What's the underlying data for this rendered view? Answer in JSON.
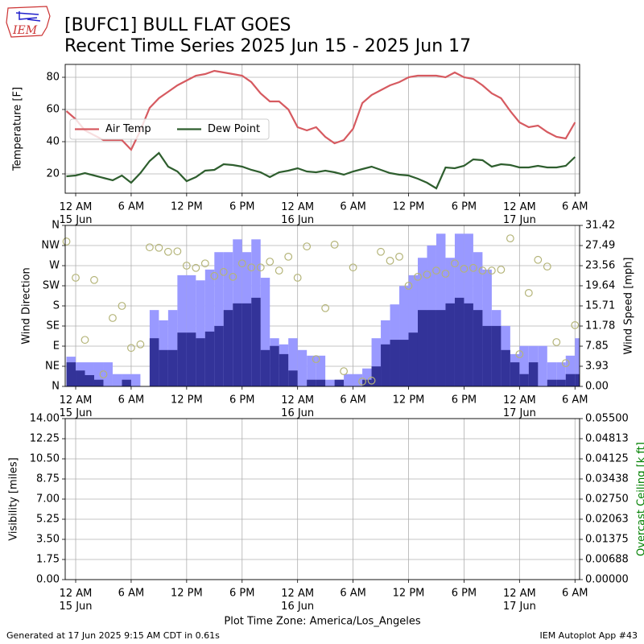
{
  "logo_text": "IEM",
  "title": "[BUFC1] BULL FLAT GOES",
  "subtitle": "Recent Time Series 2025 Jun 15 - 2025 Jun 17",
  "footer": {
    "left": "Generated at 17 Jun 2025 9:15 AM CDT in 0.61s",
    "right": "IEM Autoplot App #43"
  },
  "chart_data": [
    {
      "type": "line",
      "y_label": "Temperature [F]",
      "grid": true,
      "legend": "upper left",
      "x": [
        "Jun 14 23:00",
        "Jun 15 00:00",
        "Jun 15 01:00",
        "Jun 15 02:00",
        "Jun 15 03:00",
        "Jun 15 04:00",
        "Jun 15 05:00",
        "Jun 15 06:00",
        "Jun 15 07:00",
        "Jun 15 08:00",
        "Jun 15 09:00",
        "Jun 15 10:00",
        "Jun 15 11:00",
        "Jun 15 12:00",
        "Jun 15 13:00",
        "Jun 15 14:00",
        "Jun 15 15:00",
        "Jun 15 16:00",
        "Jun 15 17:00",
        "Jun 15 18:00",
        "Jun 15 19:00",
        "Jun 15 20:00",
        "Jun 15 21:00",
        "Jun 15 22:00",
        "Jun 15 23:00",
        "Jun 16 00:00",
        "Jun 16 01:00",
        "Jun 16 02:00",
        "Jun 16 03:00",
        "Jun 16 04:00",
        "Jun 16 05:00",
        "Jun 16 06:00",
        "Jun 16 07:00",
        "Jun 16 08:00",
        "Jun 16 09:00",
        "Jun 16 10:00",
        "Jun 16 11:00",
        "Jun 16 12:00",
        "Jun 16 13:00",
        "Jun 16 14:00",
        "Jun 16 15:00",
        "Jun 16 16:00",
        "Jun 16 17:00",
        "Jun 16 18:00",
        "Jun 16 19:00",
        "Jun 16 20:00",
        "Jun 16 21:00",
        "Jun 16 22:00",
        "Jun 16 23:00",
        "Jun 17 00:00",
        "Jun 17 01:00",
        "Jun 17 02:00",
        "Jun 17 03:00",
        "Jun 17 04:00",
        "Jun 17 05:00",
        "Jun 17 06:00"
      ],
      "series": [
        {
          "name": "Air Temp",
          "color": "#d65a60",
          "values": [
            59,
            54,
            47,
            44,
            41,
            41,
            41,
            35,
            47,
            61,
            67,
            71,
            75,
            78,
            81,
            82,
            84,
            83,
            82,
            81,
            77,
            70,
            65,
            65,
            60,
            49,
            47,
            49,
            43,
            39,
            41,
            48,
            64,
            69,
            72,
            75,
            77,
            80,
            81,
            81,
            81,
            80,
            83,
            80,
            79,
            75,
            70,
            67,
            59,
            52,
            49,
            50,
            46,
            43,
            42,
            52
          ]
        },
        {
          "name": "Dew Point",
          "color": "#2e5e2e",
          "values": [
            18.5,
            19,
            20.5,
            19,
            17.5,
            16,
            19,
            14.5,
            20.5,
            28,
            33,
            24.5,
            21.5,
            15.5,
            18,
            22,
            22.5,
            26,
            25.5,
            24.5,
            22.5,
            21,
            18,
            21,
            22,
            23.5,
            21.5,
            21,
            22,
            21,
            19.5,
            21.5,
            23,
            24.5,
            22.5,
            20.5,
            19.5,
            19,
            17,
            14.5,
            11,
            24,
            23.5,
            25,
            29,
            28.5,
            24.5,
            26,
            25.5,
            24,
            24,
            25,
            24,
            24,
            25,
            30.5
          ]
        }
      ],
      "xlim": [
        "Jun 14 22:52",
        "Jun 17 06:30"
      ],
      "xticks": [
        {
          "value": "Jun 15 00:00",
          "label": "12 AM\n15 Jun"
        },
        {
          "value": "Jun 15 06:00",
          "label": "6 AM"
        },
        {
          "value": "Jun 15 12:00",
          "label": "12 PM"
        },
        {
          "value": "Jun 15 18:00",
          "label": "6 PM"
        },
        {
          "value": "Jun 16 00:00",
          "label": "12 AM\n16 Jun"
        },
        {
          "value": "Jun 16 06:00",
          "label": "6 AM"
        },
        {
          "value": "Jun 16 12:00",
          "label": "12 PM"
        },
        {
          "value": "Jun 16 18:00",
          "label": "6 PM"
        },
        {
          "value": "Jun 17 00:00",
          "label": "12 AM\n17 Jun"
        },
        {
          "value": "Jun 17 06:00",
          "label": "6 AM"
        }
      ],
      "ylim": [
        8,
        88
      ],
      "yticks": [
        20,
        40,
        60,
        80
      ]
    },
    {
      "type": "bar",
      "y_label": "Wind Direction",
      "y2_label": "Wind Speed [mph]",
      "grid": true,
      "x": [
        "Jun 14 23:00",
        "Jun 15 00:00",
        "Jun 15 01:00",
        "Jun 15 02:00",
        "Jun 15 03:00",
        "Jun 15 04:00",
        "Jun 15 05:00",
        "Jun 15 06:00",
        "Jun 15 07:00",
        "Jun 15 08:00",
        "Jun 15 09:00",
        "Jun 15 10:00",
        "Jun 15 11:00",
        "Jun 15 12:00",
        "Jun 15 13:00",
        "Jun 15 14:00",
        "Jun 15 15:00",
        "Jun 15 16:00",
        "Jun 15 17:00",
        "Jun 15 18:00",
        "Jun 15 19:00",
        "Jun 15 20:00",
        "Jun 15 21:00",
        "Jun 15 22:00",
        "Jun 15 23:00",
        "Jun 16 00:00",
        "Jun 16 01:00",
        "Jun 16 02:00",
        "Jun 16 03:00",
        "Jun 16 04:00",
        "Jun 16 05:00",
        "Jun 16 06:00",
        "Jun 16 07:00",
        "Jun 16 08:00",
        "Jun 16 09:00",
        "Jun 16 10:00",
        "Jun 16 11:00",
        "Jun 16 12:00",
        "Jun 16 13:00",
        "Jun 16 14:00",
        "Jun 16 15:00",
        "Jun 16 16:00",
        "Jun 16 17:00",
        "Jun 16 18:00",
        "Jun 16 19:00",
        "Jun 16 20:00",
        "Jun 16 21:00",
        "Jun 16 22:00",
        "Jun 16 23:00",
        "Jun 17 00:00",
        "Jun 17 01:00",
        "Jun 17 02:00",
        "Jun 17 03:00",
        "Jun 17 04:00",
        "Jun 17 05:00",
        "Jun 17 06:00"
      ],
      "series": [
        {
          "mark": "bar",
          "axis": "y2",
          "color": "#9999ff",
          "values": [
            5.8,
            4.7,
            4.7,
            4.7,
            4.7,
            2.4,
            2.4,
            2.4,
            0,
            14.9,
            12.9,
            14.9,
            21.7,
            21.7,
            20.7,
            22.8,
            26.2,
            26.2,
            28.7,
            26.2,
            28.7,
            21.2,
            9.4,
            8.2,
            9.4,
            7.1,
            6.0,
            6.0,
            1.3,
            1.3,
            2.4,
            2.4,
            3.5,
            9.4,
            12.9,
            16,
            19.6,
            21.7,
            25.1,
            27.5,
            29.8,
            25.1,
            29.8,
            29.8,
            26.2,
            22.8,
            14.9,
            11.8,
            6.3,
            7.9,
            7.9,
            7.9,
            4.7,
            4.7,
            6.0,
            9.4
          ]
        },
        {
          "mark": "bar",
          "axis": "y2",
          "color": "#333399",
          "values": [
            4.7,
            3.1,
            2.2,
            1.3,
            0,
            0,
            1.3,
            0,
            0,
            9.4,
            7.1,
            7.1,
            10.5,
            10.5,
            9.4,
            10.7,
            11.8,
            14.9,
            16.2,
            16.2,
            17.3,
            7.1,
            7.9,
            6.3,
            3.1,
            0,
            1.3,
            1.3,
            0,
            1.3,
            0,
            0,
            1.3,
            3.9,
            8.2,
            9.1,
            9.1,
            10.5,
            14.9,
            14.9,
            14.9,
            16.2,
            17.3,
            16.2,
            14.9,
            11.8,
            11.8,
            7.1,
            4.7,
            2.4,
            4.7,
            0,
            1.3,
            1.3,
            2.4,
            2.4
          ]
        },
        {
          "mark": "scatter",
          "color": "#b4b478",
          "values": [
            324,
            243,
            104,
            238,
            27,
            153,
            180,
            86,
            94,
            311,
            310,
            301,
            302,
            270,
            265,
            275,
            247,
            256,
            245,
            275,
            266,
            266,
            279,
            259,
            290,
            243,
            313,
            61,
            175,
            317,
            34,
            266,
            11,
            13,
            301,
            281,
            290,
            225,
            245,
            250,
            259,
            252,
            275,
            263,
            265,
            259,
            259,
            261,
            331,
            72,
            209,
            283,
            268,
            99,
            52,
            137
          ]
        }
      ],
      "xlim": [
        "Jun 14 22:52",
        "Jun 17 06:30"
      ],
      "xticks": [
        {
          "value": "Jun 15 00:00",
          "label": "12 AM\n15 Jun"
        },
        {
          "value": "Jun 15 06:00",
          "label": "6 AM"
        },
        {
          "value": "Jun 15 12:00",
          "label": "12 PM"
        },
        {
          "value": "Jun 15 18:00",
          "label": "6 PM"
        },
        {
          "value": "Jun 16 00:00",
          "label": "12 AM\n16 Jun"
        },
        {
          "value": "Jun 16 06:00",
          "label": "6 AM"
        },
        {
          "value": "Jun 16 12:00",
          "label": "12 PM"
        },
        {
          "value": "Jun 16 18:00",
          "label": "6 PM"
        },
        {
          "value": "Jun 17 00:00",
          "label": "12 AM\n17 Jun"
        },
        {
          "value": "Jun 17 06:00",
          "label": "6 AM"
        }
      ],
      "ylim": [
        0,
        360
      ],
      "yticks": [
        {
          "value": 0,
          "label": "N"
        },
        {
          "value": 45,
          "label": "NE"
        },
        {
          "value": 90,
          "label": "E"
        },
        {
          "value": 135,
          "label": "SE"
        },
        {
          "value": 180,
          "label": "S"
        },
        {
          "value": 225,
          "label": "SW"
        },
        {
          "value": 270,
          "label": "W"
        },
        {
          "value": 315,
          "label": "NW"
        },
        {
          "value": 360,
          "label": "N"
        }
      ],
      "y2lim": [
        0,
        31.42
      ],
      "y2ticks": [
        {
          "value": 0,
          "label": "0.00"
        },
        3.93,
        7.85,
        11.78,
        15.71,
        19.64,
        23.56,
        27.49,
        31.42
      ]
    },
    {
      "type": "line",
      "y_label": "Visibility [miles]",
      "y2_label": "Overcast Ceiling [k ft]",
      "x_label": "Plot Time Zone: America/Los_Angeles",
      "grid": true,
      "xlim": [
        "Jun 14 22:52",
        "Jun 17 06:30"
      ],
      "xticks": [
        {
          "value": "Jun 15 00:00",
          "label": "12 AM\n15 Jun"
        },
        {
          "value": "Jun 15 06:00",
          "label": "6 AM"
        },
        {
          "value": "Jun 15 12:00",
          "label": "12 PM"
        },
        {
          "value": "Jun 15 18:00",
          "label": "6 PM"
        },
        {
          "value": "Jun 16 00:00",
          "label": "12 AM\n16 Jun"
        },
        {
          "value": "Jun 16 06:00",
          "label": "6 AM"
        },
        {
          "value": "Jun 16 12:00",
          "label": "12 PM"
        },
        {
          "value": "Jun 16 18:00",
          "label": "6 PM"
        },
        {
          "value": "Jun 17 00:00",
          "label": "12 AM\n17 Jun"
        },
        {
          "value": "Jun 17 06:00",
          "label": "6 AM"
        }
      ],
      "ylim": [
        0,
        14
      ],
      "yticks": [
        {
          "value": 0,
          "label": "0.00"
        },
        1.75,
        {
          "value": 3.5,
          "label": "3.50"
        },
        {
          "value": 5.25,
          "label": "5.25"
        },
        {
          "value": 7,
          "label": "7.00"
        },
        8.75,
        {
          "value": 10.5,
          "label": "10.50"
        },
        12.25,
        {
          "value": 14,
          "label": "14.00"
        }
      ],
      "y2lim": [
        0,
        0.055
      ],
      "y2ticks": [
        {
          "value": 0,
          "label": "0.00000"
        },
        0.00688,
        0.01375,
        0.02063,
        {
          "value": 0.0275,
          "label": "0.02750"
        },
        0.03438,
        0.04125,
        0.04813,
        {
          "value": 0.055,
          "label": "0.05500"
        }
      ]
    }
  ]
}
